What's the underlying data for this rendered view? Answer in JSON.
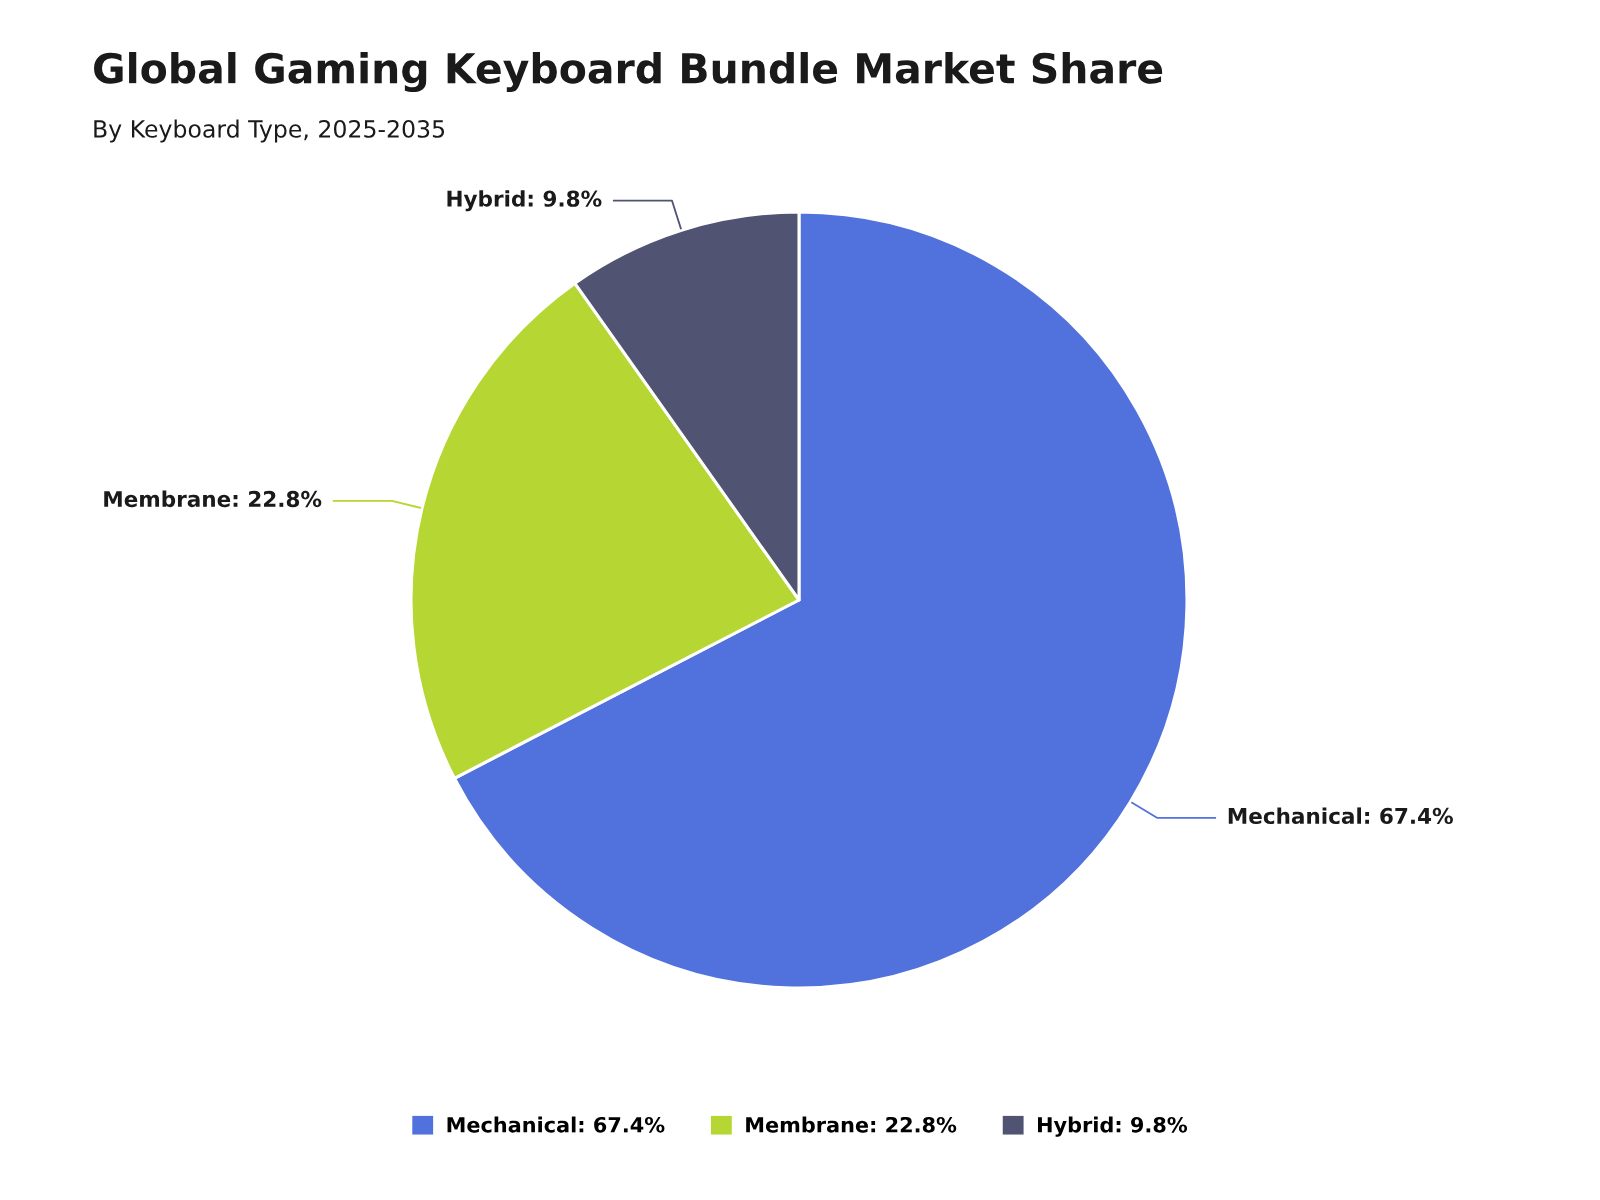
{
  "chart_data": {
    "type": "pie",
    "title": "Global Gaming Keyboard Bundle Market Share",
    "subtitle": "By Keyboard Type, 2025-2035",
    "categories": [
      "Mechanical",
      "Membrane",
      "Hybrid"
    ],
    "values": [
      67.4,
      22.8,
      9.8
    ],
    "colors": [
      "#5171dd",
      "#b6d733",
      "#505371"
    ],
    "value_labels": [
      "67.4%",
      "22.8%",
      "9.8%"
    ],
    "legend": "bottom"
  }
}
